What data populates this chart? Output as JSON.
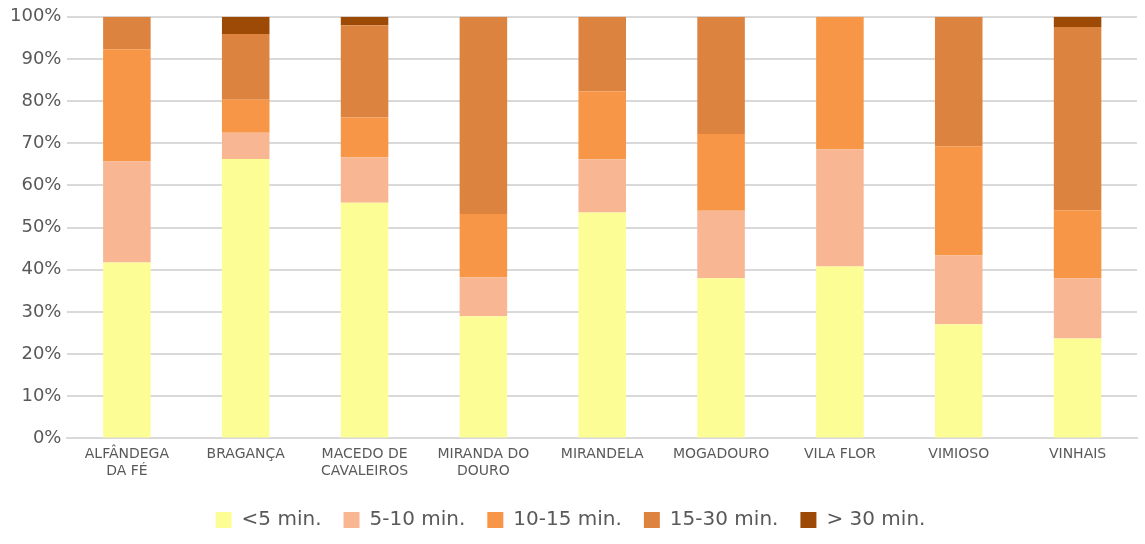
{
  "chart_data": {
    "type": "bar",
    "stacked": true,
    "categories": [
      "ALFÂNDEGA DA FÉ",
      "BRAGANÇA",
      "MACEDO DE CAVALEIROS",
      "MIRANDA DO DOURO",
      "MIRANDELA",
      "MOGADOURO",
      "VILA FLOR",
      "VIMIOSO",
      "VINHAIS"
    ],
    "series": [
      {
        "name": "<5 min.",
        "color": "#fdfd96",
        "values": [
          41.7,
          66.3,
          55.9,
          29.0,
          53.6,
          38.0,
          40.8,
          27.1,
          23.7
        ]
      },
      {
        "name": "5-10 min.",
        "color": "#f8b692",
        "values": [
          24.0,
          6.2,
          10.8,
          9.2,
          12.6,
          16.0,
          27.8,
          16.3,
          14.3
        ]
      },
      {
        "name": "10-15 min.",
        "color": "#f79646",
        "values": [
          26.6,
          7.8,
          9.4,
          15.0,
          16.1,
          18.2,
          31.4,
          25.9,
          16.1
        ]
      },
      {
        "name": "15-30 min.",
        "color": "#dd8340",
        "values": [
          7.7,
          15.6,
          21.9,
          46.8,
          17.7,
          27.8,
          0,
          30.7,
          43.5
        ]
      },
      {
        "name": "> 30 min.",
        "color": "#9c4a06",
        "values": [
          0,
          4.1,
          2.0,
          0,
          0,
          0,
          0,
          0,
          2.4
        ]
      }
    ],
    "ylim": [
      0,
      100
    ],
    "yticks": [
      {
        "value": 0,
        "label": "0%"
      },
      {
        "value": 10,
        "label": "10%"
      },
      {
        "value": 20,
        "label": "20%"
      },
      {
        "value": 30,
        "label": "30%"
      },
      {
        "value": 40,
        "label": "40%"
      },
      {
        "value": 50,
        "label": "50%"
      },
      {
        "value": 60,
        "label": "60%"
      },
      {
        "value": 70,
        "label": "70%"
      },
      {
        "value": 80,
        "label": "80%"
      },
      {
        "value": 90,
        "label": "90%"
      },
      {
        "value": 100,
        "label": "100%"
      }
    ],
    "grid": "y",
    "legend": "bottom"
  }
}
